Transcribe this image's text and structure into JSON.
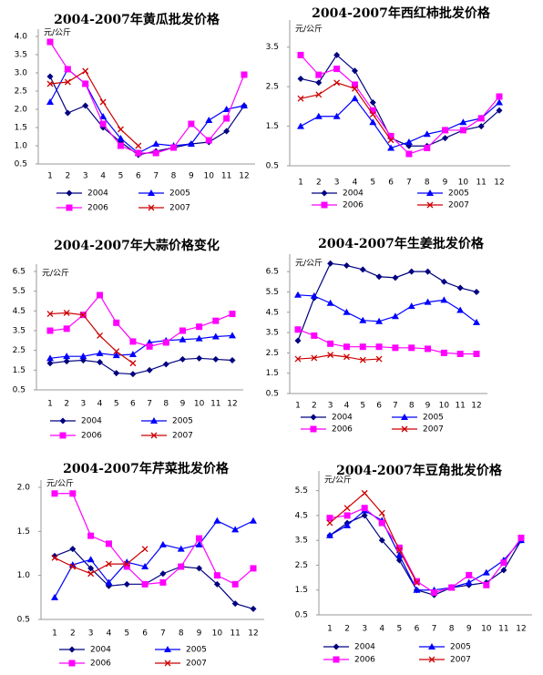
{
  "chart_data": [
    {
      "type": "line",
      "title": "2004-2007年黄瓜批发价格",
      "y_label": "元/公斤",
      "categories": [
        "1",
        "2",
        "3",
        "4",
        "5",
        "6",
        "7",
        "8",
        "9",
        "10",
        "11",
        "12"
      ],
      "ylim": [
        0.5,
        4.0
      ],
      "yticks": [
        {
          "value": 0.5,
          "label": "0.5"
        },
        {
          "value": 1,
          "label": "1.0"
        },
        {
          "value": 1.5,
          "label": "1.5"
        },
        {
          "value": 2,
          "label": "2.0"
        },
        {
          "value": 2.5,
          "label": "2.5"
        },
        {
          "value": 3,
          "label": "3.0"
        },
        {
          "value": 3.5,
          "label": "3.5"
        },
        {
          "value": 4,
          "label": "4.0"
        }
      ],
      "series": [
        {
          "name": "2004",
          "color": "#000080",
          "marker": "diamond",
          "values": [
            2.9,
            1.9,
            2.1,
            1.5,
            1.1,
            0.75,
            0.85,
            0.95,
            1.05,
            1.1,
            1.4,
            2.1
          ]
        },
        {
          "name": "2005",
          "color": "#0000ff",
          "marker": "triangle",
          "values": [
            2.2,
            3.1,
            2.7,
            1.8,
            1.2,
            0.8,
            1.05,
            1.0,
            1.05,
            1.7,
            2.0,
            2.1
          ]
        },
        {
          "name": "2006",
          "color": "#ff00ff",
          "marker": "square",
          "values": [
            3.85,
            3.1,
            2.7,
            1.6,
            1.0,
            0.8,
            0.8,
            0.95,
            1.6,
            1.15,
            1.75,
            2.95
          ]
        },
        {
          "name": "2007",
          "color": "#cc0000",
          "marker": "x",
          "values": [
            2.7,
            2.75,
            3.05,
            2.2,
            1.45,
            1.0,
            null,
            null,
            null,
            null,
            null,
            null
          ]
        }
      ]
    },
    {
      "type": "line",
      "title": "2004-2007年西红柿批发价格",
      "y_label": "元/公斤",
      "categories": [
        "1",
        "2",
        "3",
        "4",
        "5",
        "6",
        "7",
        "8",
        "9",
        "10",
        "11",
        "12"
      ],
      "ylim": [
        0.5,
        4.0
      ],
      "yticks": [
        0.5,
        1.5,
        2.5,
        3.5
      ],
      "series": [
        {
          "name": "2004",
          "color": "#000080",
          "marker": "diamond",
          "values": [
            2.7,
            2.6,
            3.3,
            2.9,
            2.1,
            1.2,
            1.0,
            1.0,
            1.2,
            1.4,
            1.5,
            1.9
          ]
        },
        {
          "name": "2005",
          "color": "#0000ff",
          "marker": "triangle",
          "values": [
            1.5,
            1.75,
            1.75,
            2.2,
            1.6,
            0.95,
            1.1,
            1.3,
            1.4,
            1.6,
            1.7,
            2.1
          ]
        },
        {
          "name": "2006",
          "color": "#ff00ff",
          "marker": "square",
          "values": [
            3.3,
            2.8,
            2.95,
            2.55,
            1.9,
            1.25,
            0.8,
            0.95,
            1.4,
            1.4,
            1.7,
            2.25
          ]
        },
        {
          "name": "2007",
          "color": "#cc0000",
          "marker": "x",
          "values": [
            2.2,
            2.3,
            2.6,
            2.45,
            1.8,
            1.15,
            null,
            null,
            null,
            null,
            null,
            null
          ]
        }
      ]
    },
    {
      "type": "line",
      "title": "2004-2007年大蒜价格变化",
      "y_label": "元/公斤",
      "categories": [
        "1",
        "2",
        "3",
        "4",
        "5",
        "6",
        "7",
        "8",
        "9",
        "10",
        "11",
        "12"
      ],
      "ylim": [
        0.5,
        6.5
      ],
      "yticks": [
        0.5,
        1.5,
        2.5,
        3.5,
        4.5,
        5.5,
        6.5
      ],
      "series": [
        {
          "name": "2004",
          "color": "#000080",
          "marker": "diamond",
          "values": [
            1.85,
            1.95,
            2.0,
            1.9,
            1.35,
            1.3,
            1.5,
            1.8,
            2.05,
            2.1,
            2.05,
            2.0
          ]
        },
        {
          "name": "2005",
          "color": "#0000ff",
          "marker": "triangle",
          "values": [
            2.1,
            2.2,
            2.2,
            2.35,
            2.25,
            2.3,
            2.9,
            3.0,
            3.05,
            3.1,
            3.2,
            3.25
          ]
        },
        {
          "name": "2006",
          "color": "#ff00ff",
          "marker": "square",
          "values": [
            3.5,
            3.6,
            4.3,
            5.3,
            3.9,
            2.95,
            2.7,
            2.9,
            3.5,
            3.7,
            4.0,
            4.35
          ]
        },
        {
          "name": "2007",
          "color": "#cc0000",
          "marker": "x",
          "values": [
            4.35,
            4.4,
            4.3,
            3.25,
            2.45,
            1.85,
            null,
            null,
            null,
            null,
            null,
            null
          ]
        }
      ]
    },
    {
      "type": "line",
      "title": "2004-2007年生姜批发价格",
      "y_label": "元/公斤",
      "categories": [
        "1",
        "2",
        "3",
        "4",
        "5",
        "6",
        "7",
        "8",
        "9",
        "10",
        "11",
        "12"
      ],
      "ylim": [
        0.5,
        7.0
      ],
      "yticks": [
        0.5,
        1.5,
        2.5,
        3.5,
        4.5,
        5.5,
        6.5
      ],
      "series": [
        {
          "name": "2004",
          "color": "#000080",
          "marker": "diamond",
          "values": [
            3.1,
            5.2,
            6.9,
            6.8,
            6.6,
            6.25,
            6.2,
            6.5,
            6.5,
            6.0,
            5.7,
            5.5
          ]
        },
        {
          "name": "2005",
          "color": "#0000ff",
          "marker": "triangle",
          "values": [
            5.35,
            5.3,
            4.95,
            4.5,
            4.1,
            4.05,
            4.3,
            4.8,
            5.0,
            5.1,
            4.6,
            4.0
          ]
        },
        {
          "name": "2006",
          "color": "#ff00ff",
          "marker": "square",
          "values": [
            3.65,
            3.35,
            2.95,
            2.8,
            2.8,
            2.8,
            2.75,
            2.75,
            2.7,
            2.5,
            2.45,
            2.45
          ]
        },
        {
          "name": "2007",
          "color": "#cc0000",
          "marker": "x",
          "values": [
            2.2,
            2.25,
            2.4,
            2.3,
            2.15,
            2.2,
            null,
            null,
            null,
            null,
            null,
            null
          ]
        }
      ]
    },
    {
      "type": "line",
      "title": "2004-2007年芹菜批发价格",
      "y_label": "元/公斤",
      "categories": [
        "1",
        "2",
        "3",
        "4",
        "5",
        "6",
        "7",
        "8",
        "9",
        "10",
        "11",
        "12"
      ],
      "ylim": [
        0.5,
        2.0
      ],
      "yticks": [
        0.5,
        {
          "value": 1,
          "label": "1.0"
        },
        1.5,
        {
          "value": 2,
          "label": "2.0"
        }
      ],
      "series": [
        {
          "name": "2004",
          "color": "#000080",
          "marker": "diamond",
          "values": [
            1.22,
            1.3,
            1.08,
            0.88,
            0.9,
            0.9,
            1.02,
            1.1,
            1.08,
            0.9,
            0.68,
            0.62
          ]
        },
        {
          "name": "2005",
          "color": "#0000ff",
          "marker": "triangle",
          "values": [
            0.75,
            1.12,
            1.18,
            0.92,
            1.15,
            1.1,
            1.35,
            1.3,
            1.35,
            1.62,
            1.52,
            1.62
          ]
        },
        {
          "name": "2006",
          "color": "#ff00ff",
          "marker": "square",
          "values": [
            1.93,
            1.93,
            1.45,
            1.36,
            1.1,
            0.9,
            0.92,
            1.1,
            1.42,
            1.0,
            0.9,
            1.08
          ]
        },
        {
          "name": "2007",
          "color": "#cc0000",
          "marker": "x",
          "values": [
            1.2,
            1.1,
            1.02,
            1.13,
            1.13,
            1.3,
            null,
            null,
            null,
            null,
            null,
            null
          ]
        }
      ]
    },
    {
      "type": "line",
      "title": "2004-2007年豆角批发价格",
      "y_label": "元/公斤",
      "categories": [
        "1",
        "2",
        "3",
        "4",
        "5",
        "6",
        "7",
        "8",
        "9",
        "10",
        "11",
        "12"
      ],
      "ylim": [
        0.5,
        6.0
      ],
      "yticks": [
        0.5,
        1.5,
        2.5,
        3.5,
        4.5,
        5.5
      ],
      "series": [
        {
          "name": "2004",
          "color": "#000080",
          "marker": "diamond",
          "values": [
            3.7,
            4.2,
            4.5,
            3.5,
            2.7,
            1.5,
            1.3,
            1.6,
            1.7,
            1.8,
            2.3,
            3.5
          ]
        },
        {
          "name": "2005",
          "color": "#0000ff",
          "marker": "triangle",
          "values": [
            3.7,
            4.1,
            4.7,
            4.3,
            2.9,
            1.5,
            1.5,
            1.6,
            1.8,
            2.2,
            2.7,
            3.5
          ]
        },
        {
          "name": "2006",
          "color": "#ff00ff",
          "marker": "square",
          "values": [
            4.4,
            4.5,
            4.8,
            4.2,
            3.2,
            1.85,
            1.4,
            1.6,
            2.1,
            1.7,
            2.6,
            3.6
          ]
        },
        {
          "name": "2007",
          "color": "#cc0000",
          "marker": "x",
          "values": [
            4.2,
            4.8,
            5.4,
            4.6,
            3.1,
            1.8,
            null,
            null,
            null,
            null,
            null,
            null
          ]
        }
      ]
    }
  ]
}
